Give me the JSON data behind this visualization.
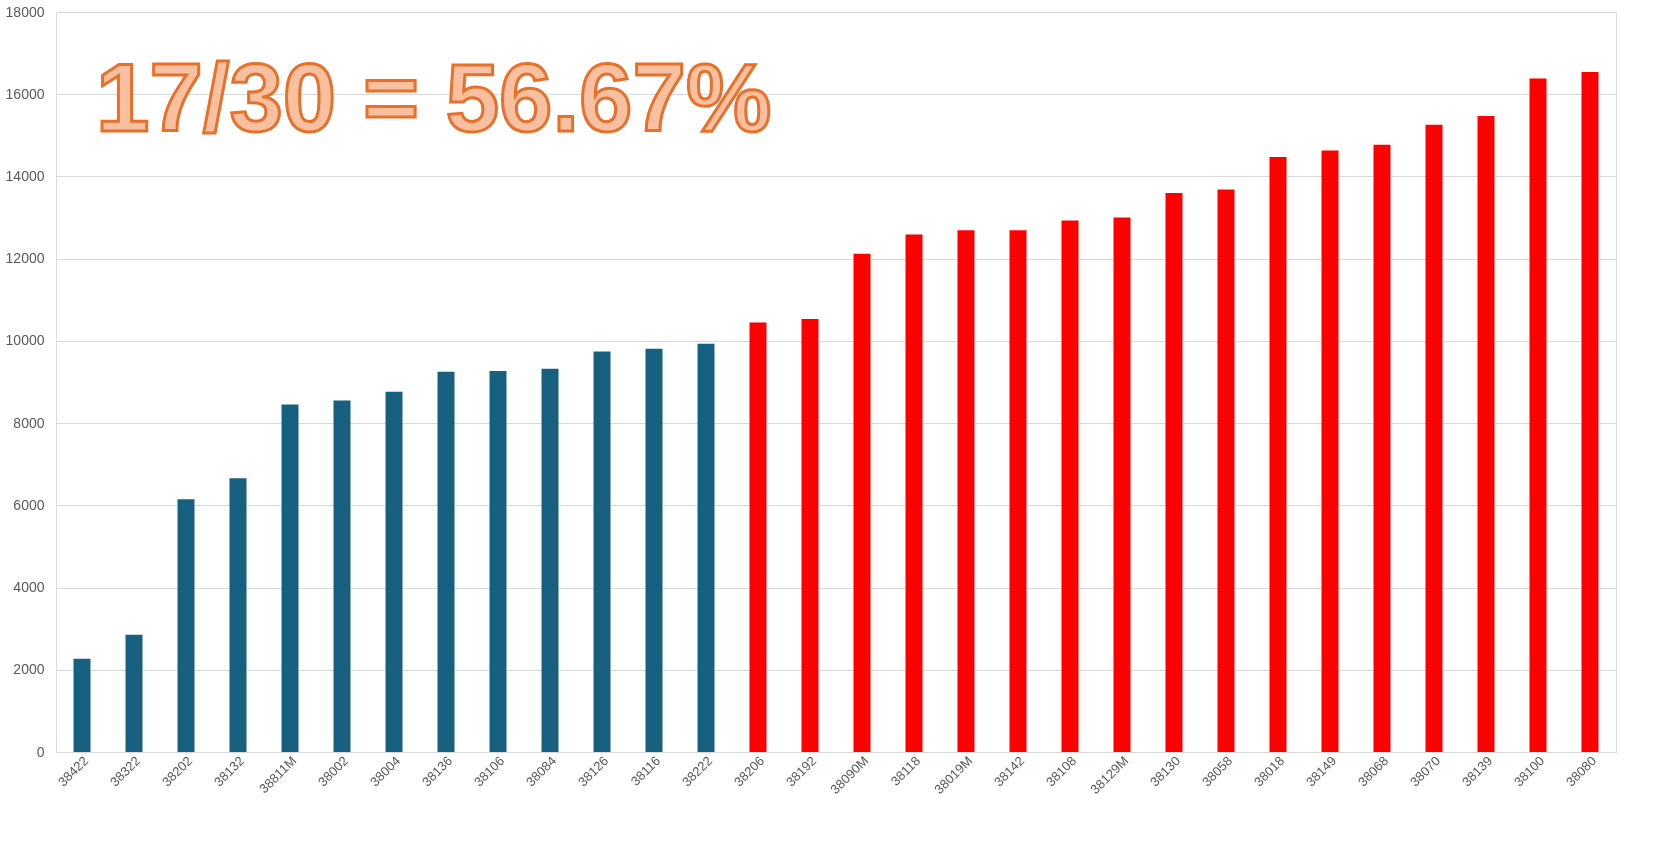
{
  "chart_data": {
    "type": "bar",
    "categories": [
      "38422",
      "38322",
      "38202",
      "38132",
      "38811M",
      "38002",
      "38004",
      "38136",
      "38106",
      "38084",
      "38126",
      "38116",
      "38222",
      "38206",
      "38192",
      "38090M",
      "38118",
      "38019M",
      "38142",
      "38108",
      "38129M",
      "38130",
      "38058",
      "38018",
      "38149",
      "38068",
      "38070",
      "38139",
      "38100",
      "38080"
    ],
    "values": [
      2270,
      2850,
      6150,
      6660,
      8450,
      8550,
      8760,
      9250,
      9270,
      9320,
      9740,
      9810,
      9930,
      10450,
      10530,
      12120,
      12590,
      12690,
      12690,
      12930,
      13000,
      13600,
      13680,
      14470,
      14630,
      14770,
      15260,
      15470,
      16380,
      16540
    ],
    "colors": [
      "#17607f",
      "#17607f",
      "#17607f",
      "#17607f",
      "#17607f",
      "#17607f",
      "#17607f",
      "#17607f",
      "#17607f",
      "#17607f",
      "#17607f",
      "#17607f",
      "#17607f",
      "#ff0000",
      "#ff0000",
      "#ff0000",
      "#ff0000",
      "#ff0000",
      "#ff0000",
      "#ff0000",
      "#ff0000",
      "#ff0000",
      "#ff0000",
      "#ff0000",
      "#ff0000",
      "#ff0000",
      "#ff0000",
      "#ff0000",
      "#ff0000",
      "#ff0000"
    ],
    "ylim": [
      0,
      18000
    ],
    "yticks": [
      0,
      2000,
      4000,
      6000,
      8000,
      10000,
      12000,
      14000,
      16000,
      18000
    ],
    "grid": "y",
    "annotations": [
      "17/30 = 56.67%"
    ]
  }
}
